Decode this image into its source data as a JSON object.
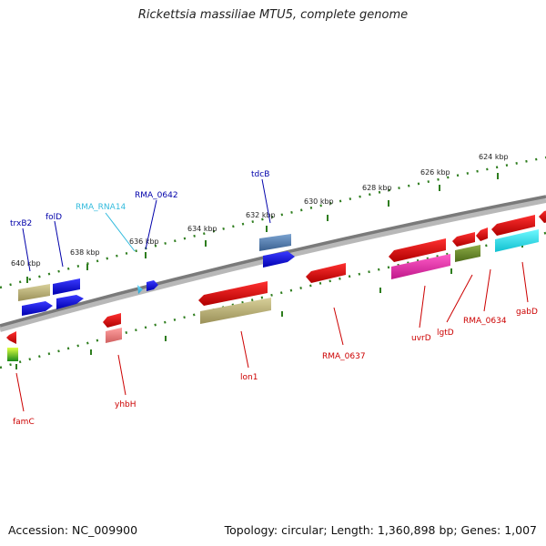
{
  "header": {
    "title": "Rickettsia massiliae MTU5, complete genome"
  },
  "footer": {
    "accession": "Accession: NC_009900",
    "summary": "Topology: circular; Length: 1,360,898 bp; Genes: 1,007"
  },
  "colors": {
    "backbone": "#808080",
    "tick_dots": "#2e7d1e",
    "label_forward": "#0000aa",
    "label_reverse": "#cc0000",
    "label_rna": "#33bbdd"
  },
  "scale_ticks": [
    {
      "label": "640 kbp"
    },
    {
      "label": "638 kbp"
    },
    {
      "label": "636 kbp"
    },
    {
      "label": "634 kbp"
    },
    {
      "label": "632 kbp"
    },
    {
      "label": "630 kbp"
    },
    {
      "label": "628 kbp"
    },
    {
      "label": "626 kbp"
    },
    {
      "label": "624 kbp"
    }
  ],
  "gene_labels": [
    {
      "name": "trxB2",
      "strand": "forward"
    },
    {
      "name": "folD",
      "strand": "forward"
    },
    {
      "name": "RMA_RNA14",
      "strand": "rna"
    },
    {
      "name": "RMA_0642",
      "strand": "forward"
    },
    {
      "name": "tdcB",
      "strand": "forward"
    },
    {
      "name": "famC",
      "strand": "reverse"
    },
    {
      "name": "yhbH",
      "strand": "reverse"
    },
    {
      "name": "lon1",
      "strand": "reverse"
    },
    {
      "name": "RMA_0637",
      "strand": "reverse"
    },
    {
      "name": "uvrD",
      "strand": "reverse"
    },
    {
      "name": "lgtD",
      "strand": "reverse"
    },
    {
      "name": "RMA_0634",
      "strand": "reverse"
    },
    {
      "name": "gabD",
      "strand": "reverse"
    }
  ]
}
